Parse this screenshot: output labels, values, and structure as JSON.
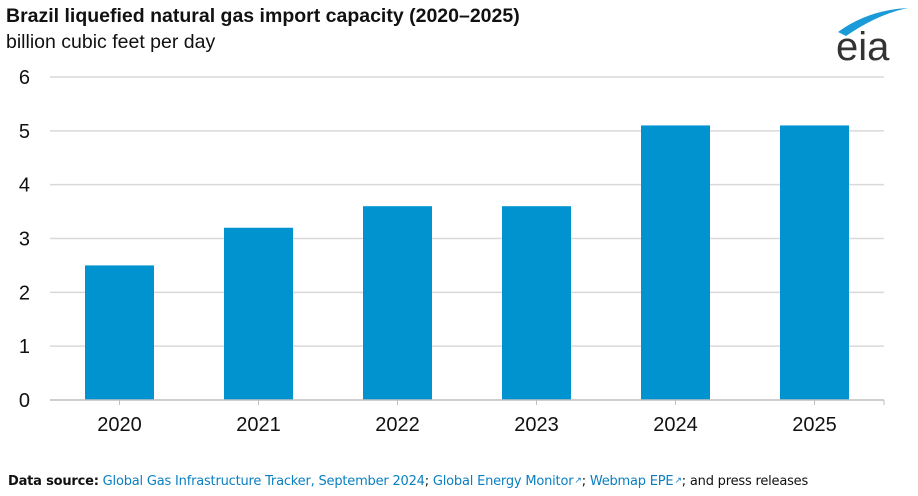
{
  "header": {
    "title": "Brazil liquefied natural gas import capacity (2020–2025)",
    "subtitle": "billion cubic feet per day",
    "logo_text": "eia"
  },
  "footer": {
    "label": "Data source:",
    "link1": "Global Gas Infrastructure Tracker, September 2024",
    "sep1": "; ",
    "link2": "Global Energy Monitor",
    "sep2": "; ",
    "link3": "Webmap EPE",
    "tail": "; and press releases",
    "external_icon": "↗"
  },
  "colors": {
    "bar": "#0093d0",
    "grid": "#d9d9d9",
    "axis": "#bfbfbf",
    "link": "#0a7fc0",
    "logo_arc": "#1a9ad6",
    "logo_text": "#333333"
  },
  "chart_data": {
    "type": "bar",
    "title": "Brazil liquefied natural gas import capacity (2020–2025)",
    "ylabel": "billion cubic feet per day",
    "xlabel": "",
    "categories": [
      "2020",
      "2021",
      "2022",
      "2023",
      "2024",
      "2025"
    ],
    "values": [
      2.5,
      3.2,
      3.6,
      3.6,
      5.1,
      5.1
    ],
    "ylim": [
      0,
      6
    ],
    "yticks": [
      "0",
      "1",
      "2",
      "3",
      "4",
      "5",
      "6"
    ],
    "grid": true,
    "legend": "none"
  }
}
